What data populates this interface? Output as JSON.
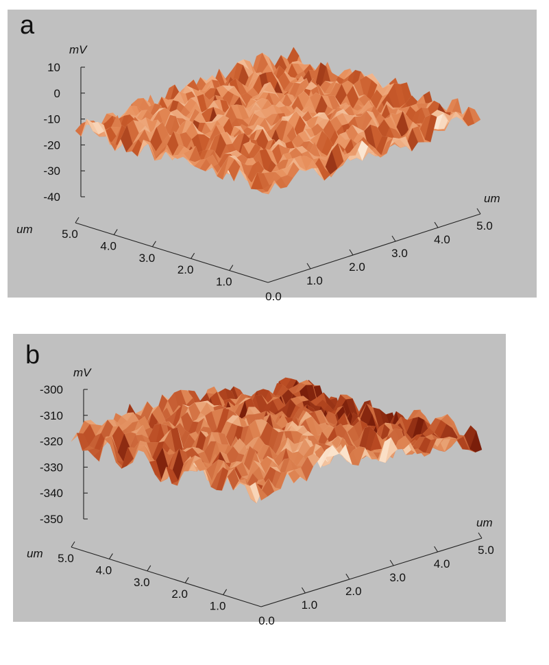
{
  "chart_data": [
    {
      "type": "surface3d",
      "panel_label": "a",
      "z_unit": "mV",
      "z_ticks": [
        "10",
        "0",
        "-10",
        "-20",
        "-30",
        "-40"
      ],
      "zlim": [
        -40,
        10
      ],
      "x_unit": "um",
      "x_ticks": [
        "0.0",
        "1.0",
        "2.0",
        "3.0",
        "4.0",
        "5.0"
      ],
      "xlim": [
        0,
        5
      ],
      "y_unit": "um",
      "y_ticks": [
        "0.0",
        "1.0",
        "2.0",
        "3.0",
        "4.0",
        "5.0"
      ],
      "ylim": [
        0,
        5
      ],
      "surface_mean_mV": -18,
      "surface_range_mV": [
        -30,
        -3
      ],
      "colormap": [
        "#8a2a10",
        "#c85a2a",
        "#e8915e",
        "#f3c19c",
        "#fbe6d2"
      ]
    },
    {
      "type": "surface3d",
      "panel_label": "b",
      "z_unit": "mV",
      "z_ticks": [
        "-300",
        "-310",
        "-320",
        "-330",
        "-340",
        "-350"
      ],
      "zlim": [
        -350,
        -300
      ],
      "x_unit": "um",
      "x_ticks": [
        "0.0",
        "1.0",
        "2.0",
        "3.0",
        "4.0",
        "5.0"
      ],
      "xlim": [
        0,
        5
      ],
      "y_unit": "um",
      "y_ticks": [
        "0.0",
        "1.0",
        "2.0",
        "3.0",
        "4.0",
        "5.0"
      ],
      "ylim": [
        0,
        5
      ],
      "surface_mean_mV": -322,
      "surface_range_mV": [
        -335,
        -305
      ],
      "colormap": [
        "#7a1e0a",
        "#b94a22",
        "#dd8250",
        "#efb388",
        "#fbe3cc"
      ]
    }
  ]
}
